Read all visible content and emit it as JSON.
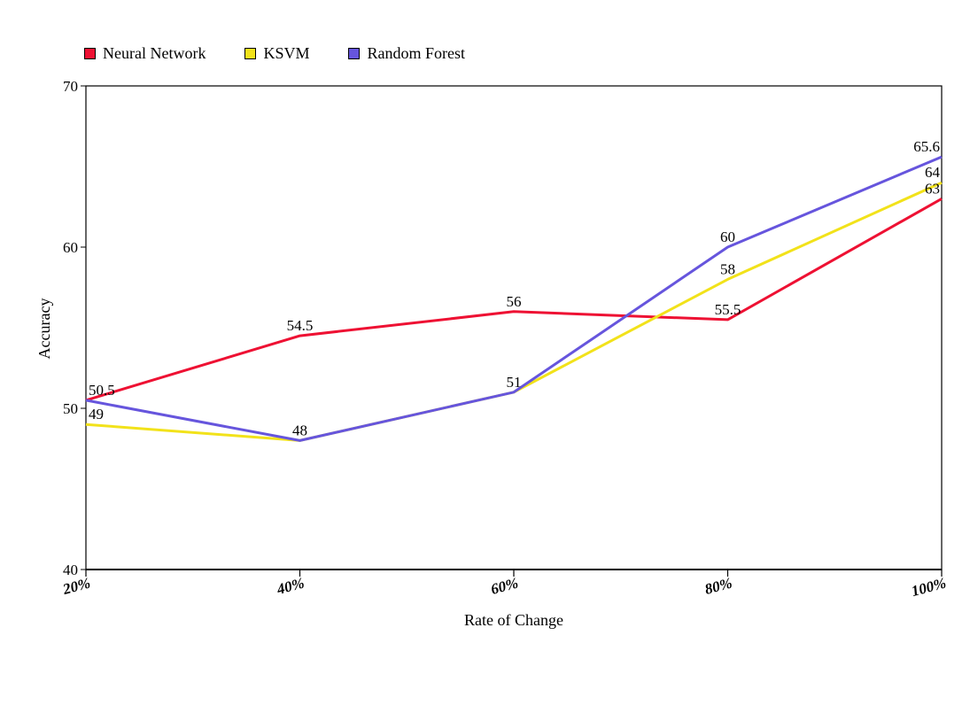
{
  "chart_data": {
    "type": "line",
    "categories": [
      "20%",
      "40%",
      "60%",
      "80%",
      "100%"
    ],
    "series": [
      {
        "name": "Neural Network",
        "color": "#ee1133",
        "values": [
          50.5,
          54.5,
          56,
          55.5,
          63
        ]
      },
      {
        "name": "KSVM",
        "color": "#f2e21a",
        "values": [
          49,
          48,
          51,
          58,
          64
        ]
      },
      {
        "name": "Random Forest",
        "color": "#6655dd",
        "values": [
          50.5,
          48,
          51,
          60,
          65.6
        ]
      }
    ],
    "data_labels": [
      {
        "series": 0,
        "index": 0,
        "text": "50.5"
      },
      {
        "series": 0,
        "index": 1,
        "text": "54.5"
      },
      {
        "series": 0,
        "index": 2,
        "text": "56"
      },
      {
        "series": 0,
        "index": 3,
        "text": "55.5"
      },
      {
        "series": 0,
        "index": 4,
        "text": "63"
      },
      {
        "series": 1,
        "index": 0,
        "text": "49"
      },
      {
        "series": 1,
        "index": 1,
        "text": "48"
      },
      {
        "series": 1,
        "index": 2,
        "text": "51"
      },
      {
        "series": 1,
        "index": 3,
        "text": "58"
      },
      {
        "series": 1,
        "index": 4,
        "text": "64"
      },
      {
        "series": 2,
        "index": 3,
        "text": "60"
      },
      {
        "series": 2,
        "index": 4,
        "text": "65.6"
      }
    ],
    "yticks": [
      40,
      50,
      60,
      70
    ],
    "ylim": [
      40,
      70
    ],
    "xlabel": "Rate of Change",
    "ylabel": "Accuracy",
    "legend_position": "top-left",
    "grid": false
  }
}
